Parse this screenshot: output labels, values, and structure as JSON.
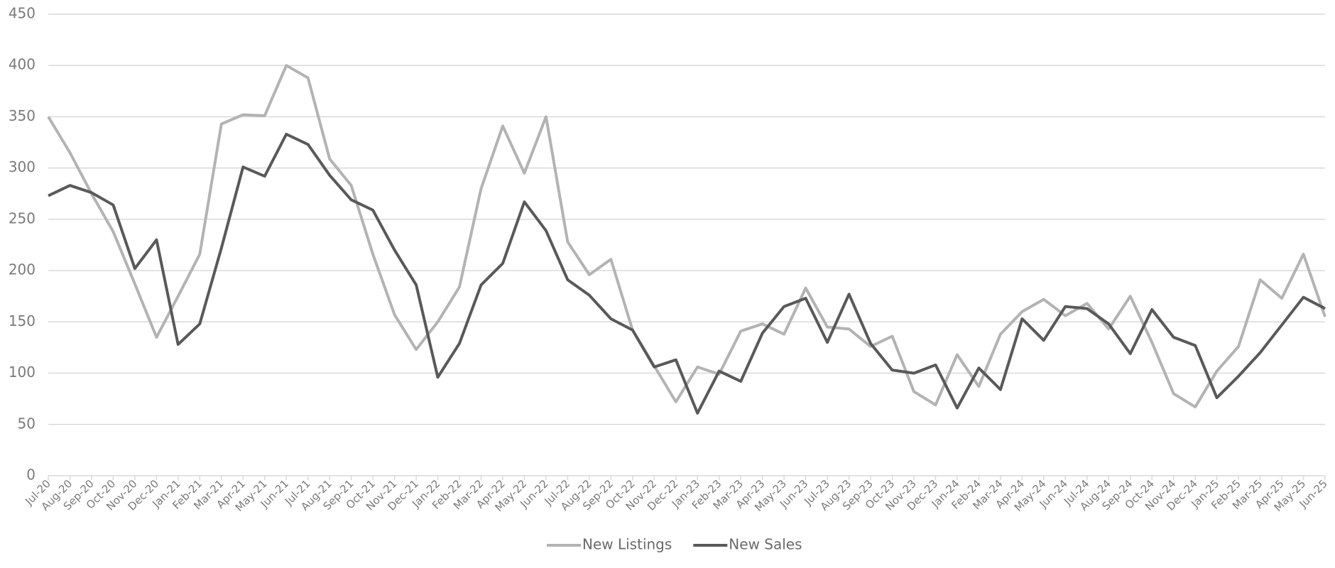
{
  "chart_data": {
    "type": "line",
    "categories": [
      "Jul-20",
      "Aug-20",
      "Sep-20",
      "Oct-20",
      "Nov-20",
      "Dec-20",
      "Jan-21",
      "Feb-21",
      "Mar-21",
      "Apr-21",
      "May-21",
      "Jun-21",
      "Jul-21",
      "Aug-21",
      "Sep-21",
      "Oct-21",
      "Nov-21",
      "Dec-21",
      "Jan-22",
      "Feb-22",
      "Mar-22",
      "Apr-22",
      "May-22",
      "Jun-22",
      "Jul-22",
      "Aug-22",
      "Sep-22",
      "Oct-22",
      "Nov-22",
      "Dec-22",
      "Jan-23",
      "Feb-23",
      "Mar-23",
      "Apr-23",
      "May-23",
      "Jun-23",
      "Jul-23",
      "Aug-23",
      "Sep-23",
      "Oct-23",
      "Nov-23",
      "Dec-23",
      "Jan-24",
      "Feb-24",
      "Mar-24",
      "Apr-24",
      "May-24",
      "Jun-24",
      "Jul-24",
      "Aug-24",
      "Sep-24",
      "Oct-24",
      "Nov-24",
      "Dec-24",
      "Jan-25",
      "Feb-25",
      "Mar-25",
      "Apr-25",
      "May-25",
      "Jun-25"
    ],
    "series": [
      {
        "name": "New Listings",
        "color": "#b3b3b3",
        "values": [
          350,
          315,
          275,
          238,
          187,
          135,
          175,
          216,
          343,
          352,
          351,
          400,
          388,
          309,
          283,
          216,
          157,
          123,
          150,
          184,
          280,
          341,
          295,
          350,
          228,
          196,
          211,
          142,
          107,
          72,
          106,
          99,
          141,
          148,
          138,
          183,
          145,
          143,
          126,
          136,
          82,
          69,
          118,
          87,
          138,
          160,
          172,
          156,
          168,
          143,
          175,
          130,
          80,
          67,
          102,
          126,
          191,
          173,
          216,
          155
        ]
      },
      {
        "name": "New Sales",
        "color": "#595959",
        "values": [
          273,
          283,
          276,
          264,
          202,
          230,
          128,
          148,
          222,
          301,
          292,
          333,
          323,
          293,
          269,
          259,
          220,
          186,
          96,
          129,
          186,
          207,
          267,
          239,
          191,
          176,
          153,
          142,
          106,
          113,
          61,
          102,
          92,
          139,
          165,
          173,
          130,
          177,
          129,
          103,
          100,
          108,
          66,
          105,
          84,
          153,
          132,
          165,
          163,
          148,
          119,
          162,
          135,
          127,
          76,
          97,
          120,
          147,
          174,
          163
        ]
      }
    ],
    "ylim": [
      0,
      450
    ],
    "yticks": [
      0,
      50,
      100,
      150,
      200,
      250,
      300,
      350,
      400,
      450
    ],
    "grid": true,
    "legend": "bottom"
  }
}
